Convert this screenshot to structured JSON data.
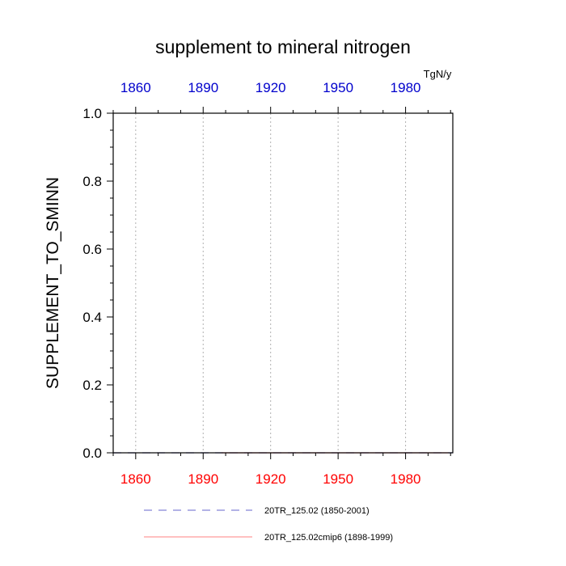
{
  "chart_data": {
    "type": "line",
    "title": "supplement to mineral nitrogen",
    "ylabel": "SUPPLEMENT_TO_SMINN",
    "units": "TgN/y",
    "xlim": [
      1850,
      2001
    ],
    "ylim": [
      0,
      1.0
    ],
    "yticks": [
      0.0,
      0.2,
      0.4,
      0.6,
      0.8,
      1.0
    ],
    "ytick_labels": [
      "0.0",
      "0.2",
      "0.4",
      "0.6",
      "0.8",
      "1.0"
    ],
    "ytick_minor_step": 0.05,
    "xticks_bottom": [
      1860,
      1890,
      1920,
      1950,
      1980
    ],
    "xtick_labels_bottom": [
      "1860",
      "1890",
      "1920",
      "1950",
      "1980"
    ],
    "xticks_top": [
      1860,
      1890,
      1920,
      1950,
      1980
    ],
    "xtick_labels_top": [
      "1860",
      "1890",
      "1920",
      "1950",
      "1980"
    ],
    "xtick_minor_step": 10,
    "vertical_gridlines": [
      1860,
      1890,
      1920,
      1950,
      1980
    ],
    "colors": {
      "bottom_axis": "#ff0000",
      "top_axis": "#0000cc",
      "grid": "#b0b0b0"
    },
    "series": [
      {
        "name": "20TR_125.02 (1850-2001)",
        "color": "#6666cc",
        "dash": "dashed",
        "x": [
          1850,
          2001
        ],
        "y": [
          0,
          0
        ]
      },
      {
        "name": "20TR_125.02cmip6 (1898-1999)",
        "color": "#ff8080",
        "dash": "solid",
        "x": [
          1898,
          1999
        ],
        "y": [
          0,
          0
        ]
      }
    ]
  }
}
